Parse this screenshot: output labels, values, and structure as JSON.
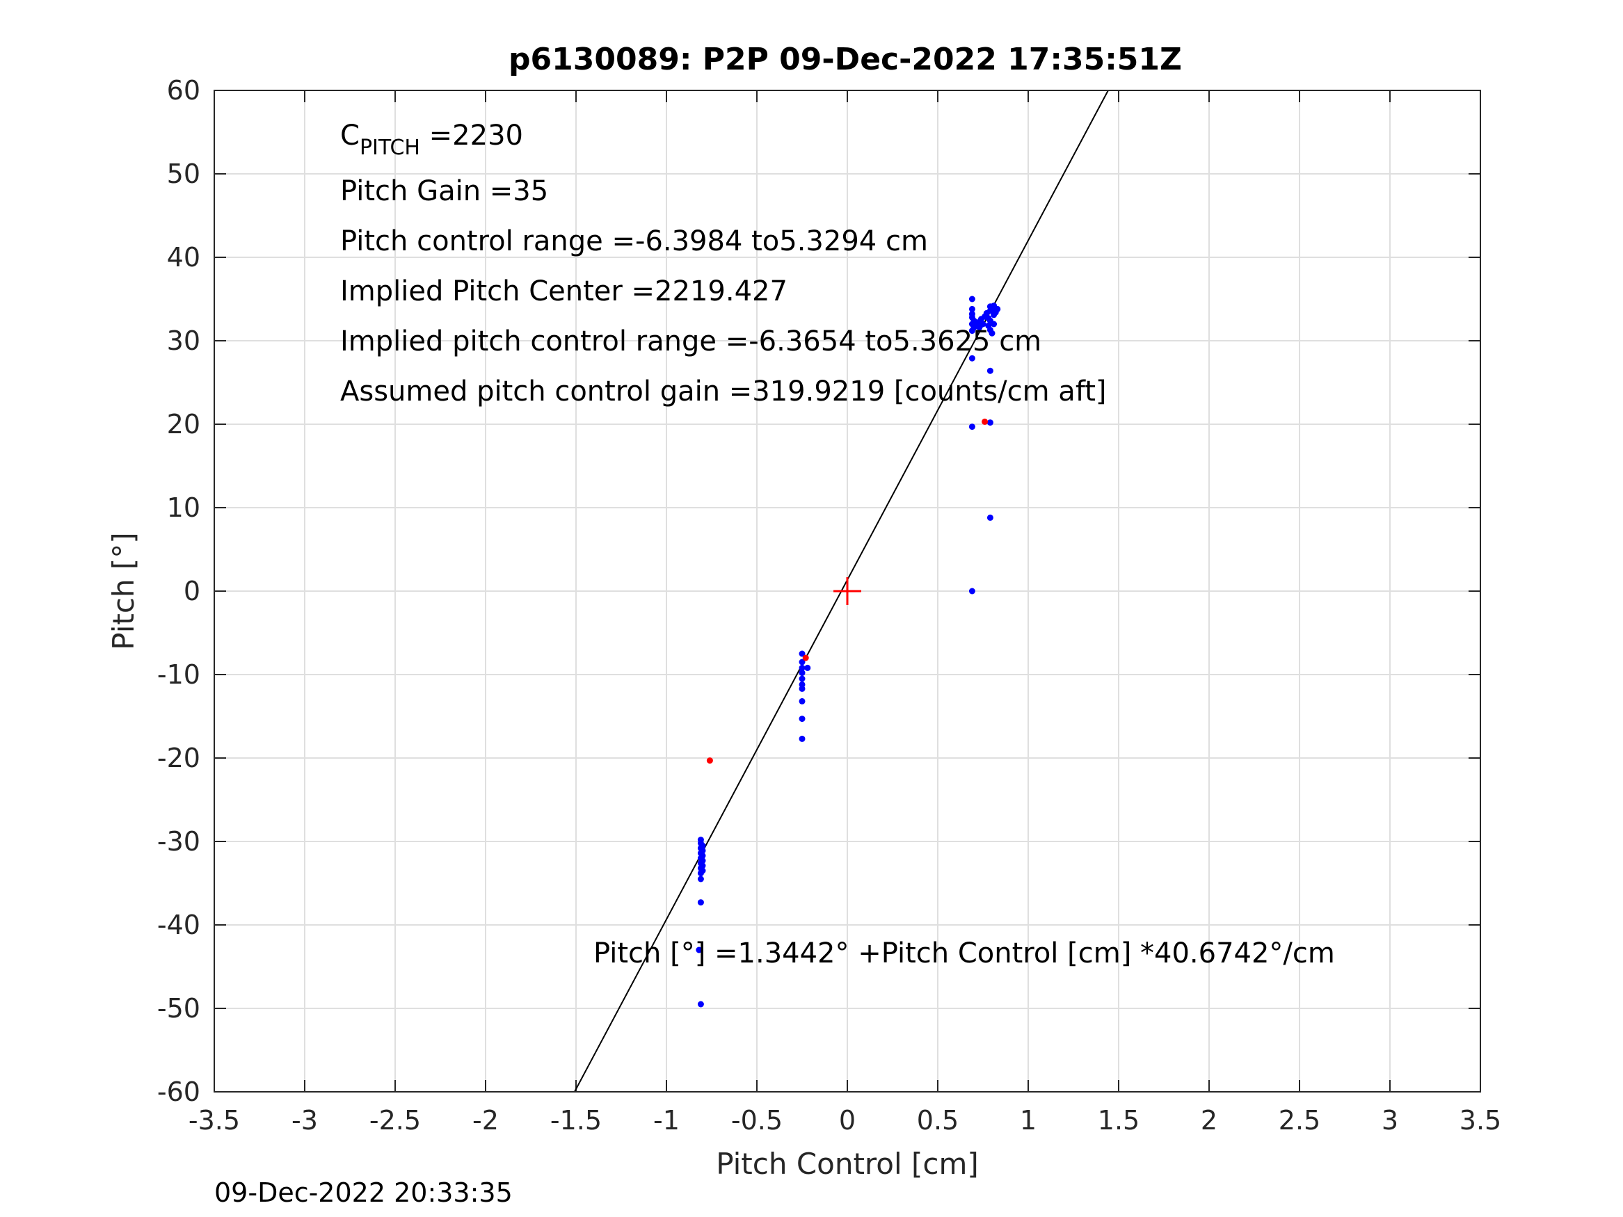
{
  "chart_data": {
    "type": "scatter",
    "title": "p6130089: P2P 09-Dec-2022 17:35:51Z",
    "xlabel": "Pitch Control [cm]",
    "ylabel": "Pitch [°]",
    "xlim": [
      -3.5,
      3.5
    ],
    "ylim": [
      -60,
      60
    ],
    "x_ticks": [
      -3.5,
      -3,
      -2.5,
      -2,
      -1.5,
      -1,
      -0.5,
      0,
      0.5,
      1,
      1.5,
      2,
      2.5,
      3,
      3.5
    ],
    "x_tick_labels": [
      "-3.5",
      "-3",
      "-2.5",
      "-2",
      "-1.5",
      "-1",
      "-0.5",
      "0",
      "0.5",
      "1",
      "1.5",
      "2",
      "2.5",
      "3",
      "3.5"
    ],
    "y_ticks": [
      -60,
      -50,
      -40,
      -30,
      -20,
      -10,
      0,
      10,
      20,
      30,
      40,
      50,
      60
    ],
    "y_tick_labels": [
      "-60",
      "-50",
      "-40",
      "-30",
      "-20",
      "-10",
      "0",
      "10",
      "20",
      "30",
      "40",
      "50",
      "60"
    ],
    "grid": true,
    "annotations": {
      "c_pitch_main": "C",
      "c_pitch_sub": "PITCH",
      "c_pitch_value": " =2230",
      "pitch_gain": "Pitch Gain =35",
      "control_range": "Pitch control range =-6.3984 to5.3294 cm",
      "implied_center": "Implied Pitch Center =2219.427",
      "implied_range": "Implied pitch control range =-6.3654 to5.3625 cm",
      "assumed_gain": "Assumed pitch control gain =319.9219 [counts/cm aft]",
      "fit_equation": "Pitch [°] =1.3442° +Pitch Control [cm] *40.6742°/cm"
    },
    "timestamp": "09-Dec-2022 20:33:35",
    "fit_line": {
      "intercept": 1.3442,
      "slope": 40.6742,
      "color": "#000000"
    },
    "center_marker": {
      "x": 0,
      "y": 0,
      "color": "#ff0000"
    },
    "series": [
      {
        "color": "#0000ff",
        "points": [
          [
            -0.81,
            -29.8
          ],
          [
            -0.81,
            -30.2
          ],
          [
            -0.8,
            -30.5
          ],
          [
            -0.81,
            -30.8
          ],
          [
            -0.8,
            -31.1
          ],
          [
            -0.81,
            -31.4
          ],
          [
            -0.8,
            -31.7
          ],
          [
            -0.81,
            -32.0
          ],
          [
            -0.8,
            -32.3
          ],
          [
            -0.81,
            -32.6
          ],
          [
            -0.8,
            -32.9
          ],
          [
            -0.81,
            -33.2
          ],
          [
            -0.8,
            -33.5
          ],
          [
            -0.81,
            -33.8
          ],
          [
            -0.81,
            -34.5
          ],
          [
            -0.81,
            -37.3
          ],
          [
            -0.82,
            -43.0
          ],
          [
            -0.81,
            -49.5
          ],
          [
            -0.25,
            -7.5
          ],
          [
            -0.25,
            -8.5
          ],
          [
            -0.25,
            -9.2
          ],
          [
            -0.25,
            -9.8
          ],
          [
            -0.25,
            -10.5
          ],
          [
            -0.25,
            -11.2
          ],
          [
            -0.25,
            -11.7
          ],
          [
            -0.25,
            -13.2
          ],
          [
            -0.25,
            -15.3
          ],
          [
            -0.25,
            -17.7
          ],
          [
            -0.22,
            -9.2
          ],
          [
            0.69,
            35.0
          ],
          [
            0.69,
            33.8
          ],
          [
            0.69,
            33.2
          ],
          [
            0.69,
            32.8
          ],
          [
            0.7,
            32.4
          ],
          [
            0.69,
            32.0
          ],
          [
            0.7,
            31.6
          ],
          [
            0.69,
            31.2
          ],
          [
            0.71,
            31.8
          ],
          [
            0.72,
            32.2
          ],
          [
            0.73,
            31.6
          ],
          [
            0.74,
            32.6
          ],
          [
            0.75,
            32.0
          ],
          [
            0.76,
            32.9
          ],
          [
            0.77,
            33.3
          ],
          [
            0.78,
            31.8
          ],
          [
            0.78,
            32.7
          ],
          [
            0.79,
            34.1
          ],
          [
            0.79,
            33.6
          ],
          [
            0.79,
            32.4
          ],
          [
            0.79,
            31.3
          ],
          [
            0.8,
            30.9
          ],
          [
            0.8,
            33.9
          ],
          [
            0.81,
            34.2
          ],
          [
            0.81,
            33.1
          ],
          [
            0.81,
            32.0
          ],
          [
            0.82,
            33.4
          ],
          [
            0.83,
            33.8
          ],
          [
            0.69,
            27.9
          ],
          [
            0.79,
            26.4
          ],
          [
            0.69,
            19.7
          ],
          [
            0.79,
            20.2
          ],
          [
            0.79,
            8.8
          ],
          [
            0.69,
            0.0
          ]
        ]
      },
      {
        "color": "#ff0000",
        "points": [
          [
            -0.76,
            -20.3
          ],
          [
            -0.23,
            -8.0
          ],
          [
            0.76,
            20.3
          ]
        ]
      }
    ]
  }
}
